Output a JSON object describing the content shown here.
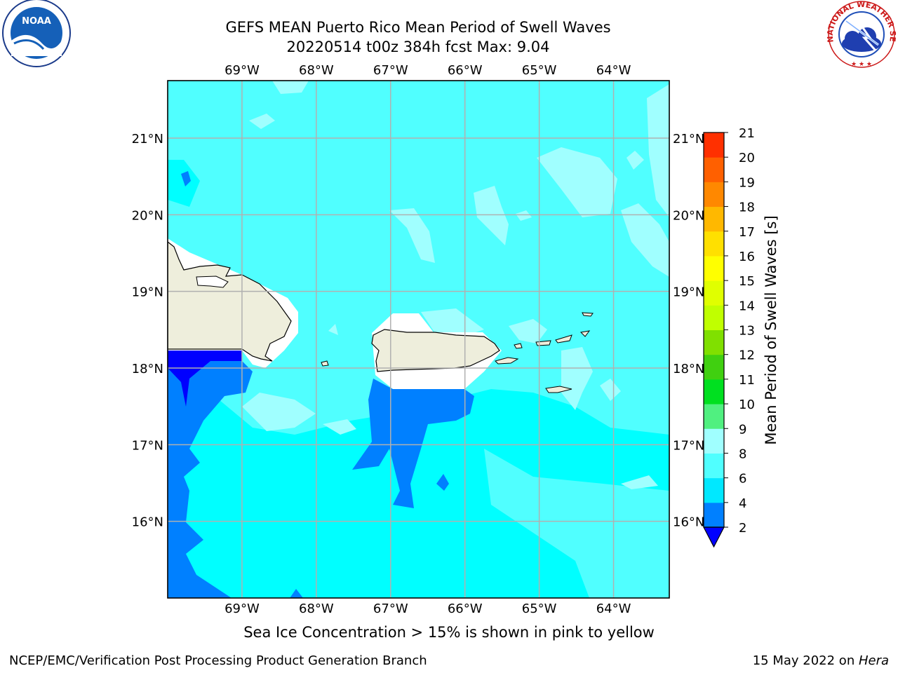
{
  "title": {
    "line1": "GEFS MEAN Puerto Rico Mean Period of Swell Waves",
    "line2": "20220514 t00z 384h fcst   Max: 9.04"
  },
  "map": {
    "lon_ticks": [
      "69°W",
      "68°W",
      "67°W",
      "66°W",
      "65°W",
      "64°W"
    ],
    "lat_ticks": [
      "21°N",
      "20°N",
      "19°N",
      "18°N",
      "17°N",
      "16°N"
    ],
    "lon_range": [
      -70.0,
      -63.25
    ],
    "lat_range": [
      15.0,
      21.75
    ],
    "land_labels": []
  },
  "colorbar": {
    "label": "Mean Period of Swell Waves [s]",
    "ticks": [
      "2",
      "4",
      "6",
      "8",
      "9",
      "10",
      "11",
      "12",
      "13",
      "14",
      "15",
      "16",
      "17",
      "18",
      "19",
      "20",
      "21"
    ],
    "colors": [
      "#0080ff",
      "#00e8ff",
      "#50ffff",
      "#a0ffff",
      "#50f080",
      "#00e020",
      "#40d010",
      "#80e000",
      "#c0ff00",
      "#e0ff00",
      "#ffff00",
      "#ffe000",
      "#ffb800",
      "#ff8800",
      "#ff6000",
      "#ff3000"
    ],
    "under_color": "#0000ff"
  },
  "legend_note": "Sea Ice Concentration > 15% is shown in pink to yellow",
  "footer": {
    "left": "NCEP/EMC/Verification Post Processing Product Generation Branch",
    "date": "15 May 2022 on ",
    "host": "Hera"
  },
  "logos": {
    "noaa": "NOAA",
    "nws": "NATIONAL WEATHER SERVICE"
  },
  "colors": {
    "ocean_base": "#00ffff",
    "ocean_light": "#50ffff",
    "ocean_lighter": "#a0ffff",
    "deep_blue": "#0080ff",
    "land": "#eeeedc",
    "grid": "#b0b0b0"
  }
}
